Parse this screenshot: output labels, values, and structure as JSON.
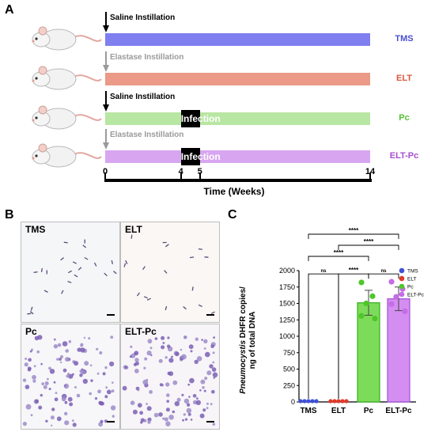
{
  "panels": {
    "a": "A",
    "b": "B",
    "c": "C"
  },
  "timeline": {
    "rows": [
      {
        "label": "TMS",
        "label_color": "#4a4fd1",
        "bar_color": "#7f7ff0",
        "instillation": "Saline Instillation",
        "instill_color": "#000000",
        "infection": ""
      },
      {
        "label": "ELT",
        "label_color": "#d65a3e",
        "bar_color": "#ea9a86",
        "instillation": "Elastase Instillation",
        "instill_color": "#9a9a9a",
        "infection": ""
      },
      {
        "label": "Pc",
        "label_color": "#55c233",
        "bar_color": "#b8e6a3",
        "instillation": "Saline Instillation",
        "instill_color": "#000000",
        "infection": "Infection"
      },
      {
        "label": "ELT-Pc",
        "label_color": "#a54fd0",
        "bar_color": "#d8a6f0",
        "instillation": "Elastase Instillation",
        "instill_color": "#9a9a9a",
        "infection": "Infection"
      }
    ],
    "ticks": [
      "0",
      "4",
      "5",
      "14"
    ],
    "axis_title": "Time (Weeks)"
  },
  "micrographs": [
    {
      "label": "TMS",
      "background": "#f4f6f8"
    },
    {
      "label": "ELT",
      "background": "#faf7f4"
    },
    {
      "label": "Pc",
      "background": "#f7f6f9"
    },
    {
      "label": "ELT-Pc",
      "background": "#f7f5f8"
    }
  ],
  "chart_data": {
    "type": "bar",
    "categories": [
      "TMS",
      "ELT",
      "Pc",
      "ELT-Pc"
    ],
    "values": [
      0,
      0,
      1510,
      1570
    ],
    "errors": [
      0,
      0,
      190,
      180
    ],
    "colors": [
      "#3f51d6",
      "#e03a2a",
      "#7ddb5a",
      "#d48ef2"
    ],
    "edge_colors": [
      "#3f51d6",
      "#e03a2a",
      "#35b01e",
      "#a24fd6"
    ],
    "points": [
      [
        0,
        0,
        0,
        0,
        0
      ],
      [
        0,
        0,
        0,
        0,
        0
      ],
      [
        1820,
        1610,
        1500,
        1310,
        1270
      ],
      [
        1830,
        1720,
        1600,
        1490,
        1380
      ]
    ],
    "ylabel_italic": "Pneumocystis",
    "ylabel_rest": " DHFR copies/",
    "ylabel_line2": "ng of total DNA",
    "ylim": [
      0,
      2000
    ],
    "yticks": [
      0,
      250,
      500,
      750,
      1000,
      1250,
      1500,
      1750,
      2000
    ],
    "legend": [
      {
        "name": "TMS",
        "color": "#3f51d6"
      },
      {
        "name": "ELT",
        "color": "#e03a2a"
      },
      {
        "name": "Pc",
        "color": "#4ec62a"
      },
      {
        "name": "ELT-Pc",
        "color": "#c56ce8"
      }
    ],
    "significance": [
      {
        "from": 0,
        "to": 1,
        "label": "ns"
      },
      {
        "from": 1,
        "to": 2,
        "label": "****"
      },
      {
        "from": 2,
        "to": 3,
        "label": "ns"
      },
      {
        "from": 0,
        "to": 2,
        "label": "****"
      },
      {
        "from": 1,
        "to": 3,
        "label": "****"
      },
      {
        "from": 0,
        "to": 3,
        "label": "****"
      }
    ]
  }
}
